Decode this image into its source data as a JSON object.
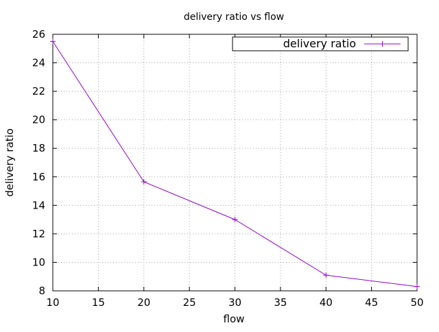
{
  "chart_data": {
    "type": "line",
    "title": "delivery ratio vs flow",
    "xlabel": "flow",
    "ylabel": "delivery ratio",
    "xlim": [
      10,
      50
    ],
    "ylim": [
      8,
      26
    ],
    "xticks": [
      10,
      15,
      20,
      25,
      30,
      35,
      40,
      45,
      50
    ],
    "yticks": [
      8,
      10,
      12,
      14,
      16,
      18,
      20,
      22,
      24,
      26
    ],
    "grid": true,
    "legend_position": "top-right",
    "x": [
      10,
      20,
      30,
      40,
      50
    ],
    "series": [
      {
        "name": "delivery ratio",
        "values": [
          25.5,
          15.65,
          13.0,
          9.1,
          8.3
        ],
        "color": "#9400d3",
        "marker": "plus"
      }
    ]
  }
}
